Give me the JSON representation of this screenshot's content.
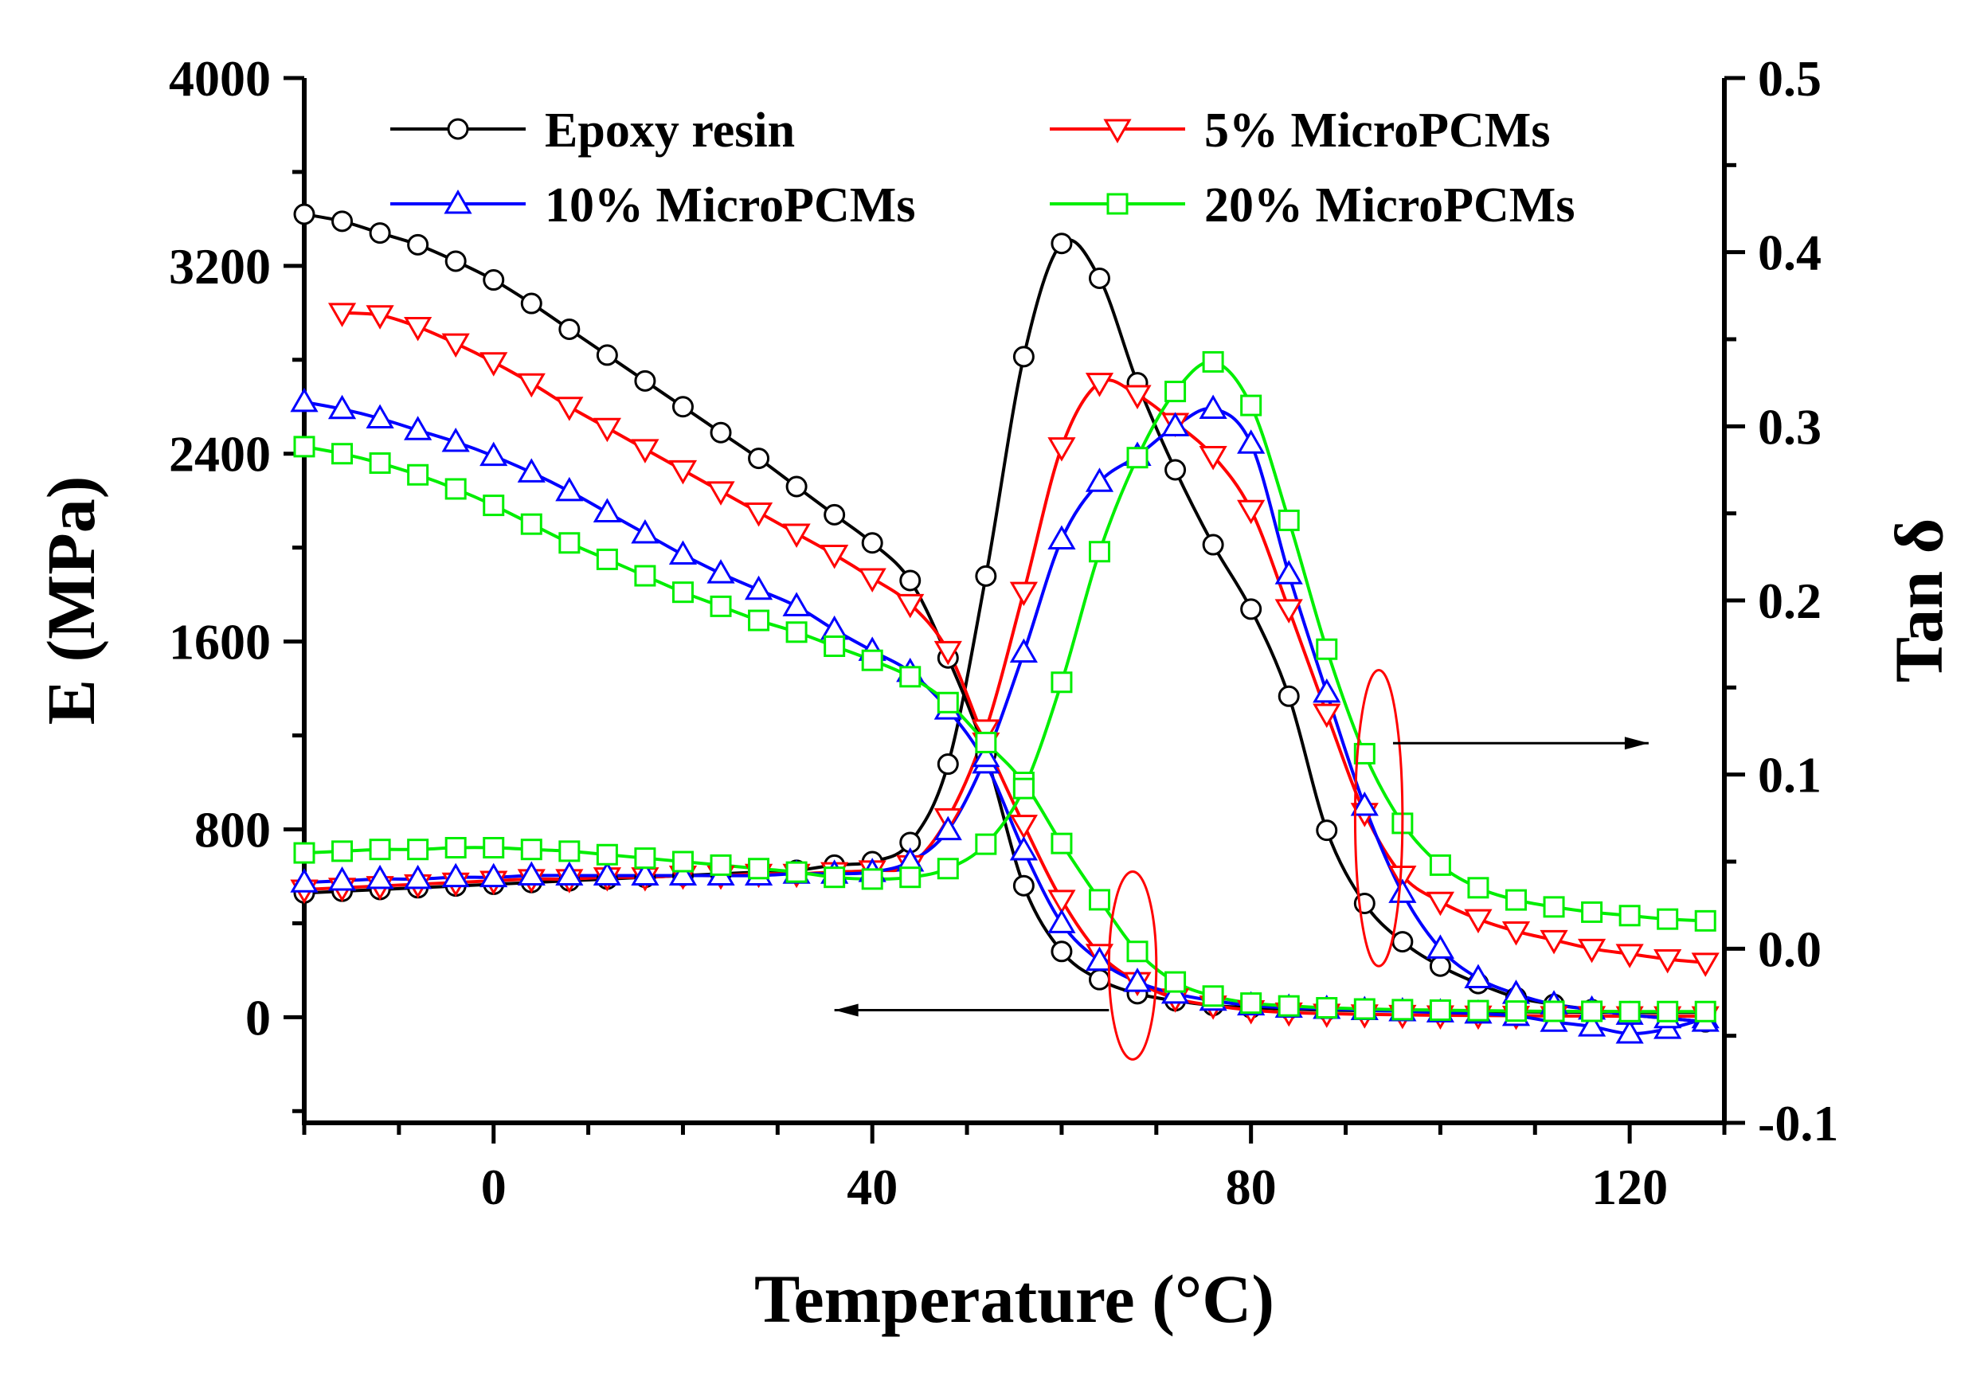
{
  "chart_data": {
    "type": "line",
    "title": "",
    "xlabel": "Temperature (°C)",
    "ylabel_left": "E  (MPa)",
    "ylabel_right": "Tan δ",
    "xlim": [
      -20,
      130
    ],
    "ylim_left": [
      -450,
      4000
    ],
    "ylim_right": [
      -0.1,
      0.5
    ],
    "x_ticks": [
      0,
      40,
      80,
      120
    ],
    "x_tick_labels": [
      "0",
      "40",
      "80",
      "120"
    ],
    "y_left_ticks": [
      0,
      800,
      1600,
      2400,
      3200,
      4000
    ],
    "y_left_tick_labels": [
      "0",
      "800",
      "1600",
      "2400",
      "3200",
      "4000"
    ],
    "y_right_ticks": [
      -0.1,
      0.0,
      0.1,
      0.2,
      0.3,
      0.4,
      0.5
    ],
    "y_right_tick_labels": [
      "-0.1",
      "0.0",
      "0.1",
      "0.2",
      "0.3",
      "0.4",
      "0.5"
    ],
    "grid": false,
    "legend_position": "top",
    "series": [
      {
        "name": "Epoxy resin",
        "color": "#000000",
        "marker": "circle",
        "storage_modulus": {
          "axis": "left",
          "x": [
            -20,
            -16,
            -12,
            -8,
            -4,
            0,
            4,
            8,
            12,
            16,
            20,
            24,
            28,
            32,
            36,
            40,
            44,
            48,
            52,
            56,
            60,
            64,
            68,
            72,
            76,
            80,
            84,
            88,
            92,
            96,
            100,
            104,
            108,
            112,
            116,
            120,
            124,
            128
          ],
          "y": [
            3420,
            3390,
            3340,
            3290,
            3220,
            3140,
            3040,
            2930,
            2820,
            2710,
            2600,
            2490,
            2380,
            2260,
            2140,
            2020,
            1860,
            1530,
            1120,
            560,
            280,
            160,
            100,
            70,
            50,
            40,
            35,
            30,
            28,
            26,
            25,
            24,
            23,
            22,
            21,
            20,
            20,
            20
          ]
        },
        "tan_delta": {
          "axis": "right",
          "x": [
            -20,
            -16,
            -12,
            -8,
            -4,
            0,
            4,
            8,
            12,
            16,
            20,
            24,
            28,
            32,
            36,
            40,
            44,
            48,
            52,
            56,
            60,
            64,
            68,
            72,
            76,
            80,
            84,
            88,
            92,
            96,
            100,
            104,
            108,
            112,
            116,
            120,
            124,
            128
          ],
          "y": [
            0.032,
            0.033,
            0.034,
            0.035,
            0.036,
            0.037,
            0.038,
            0.039,
            0.04,
            0.041,
            0.042,
            0.043,
            0.044,
            0.045,
            0.048,
            0.05,
            0.061,
            0.106,
            0.214,
            0.34,
            0.405,
            0.385,
            0.325,
            0.275,
            0.232,
            0.195,
            0.145,
            0.068,
            0.026,
            0.004,
            -0.01,
            -0.02,
            -0.028,
            -0.032,
            -0.035,
            -0.038,
            -0.04,
            -0.042
          ]
        }
      },
      {
        "name": "5% MicroPCMs",
        "color": "#ff0000",
        "marker": "triangle-down",
        "storage_modulus": {
          "axis": "left",
          "x": [
            -16,
            -12,
            -8,
            -4,
            0,
            4,
            8,
            12,
            16,
            20,
            24,
            28,
            32,
            36,
            40,
            44,
            48,
            52,
            56,
            60,
            64,
            68,
            72,
            76,
            80,
            84,
            88,
            92,
            96,
            100,
            104,
            108,
            112,
            116,
            120,
            124,
            128
          ],
          "y": [
            3000,
            2990,
            2940,
            2870,
            2790,
            2700,
            2600,
            2510,
            2420,
            2330,
            2240,
            2150,
            2060,
            1970,
            1870,
            1760,
            1560,
            1170,
            820,
            500,
            270,
            150,
            80,
            50,
            30,
            20,
            15,
            12,
            10,
            8,
            7,
            6,
            5,
            5,
            4,
            4,
            4
          ]
        },
        "tan_delta": {
          "axis": "right",
          "x": [
            -20,
            -16,
            -12,
            -8,
            -4,
            0,
            4,
            8,
            12,
            16,
            20,
            24,
            28,
            32,
            36,
            40,
            44,
            48,
            52,
            56,
            60,
            64,
            68,
            72,
            76,
            80,
            84,
            88,
            92,
            96,
            100,
            104,
            108,
            112,
            116,
            120,
            124,
            128
          ],
          "y": [
            0.034,
            0.035,
            0.036,
            0.037,
            0.038,
            0.039,
            0.04,
            0.04,
            0.041,
            0.041,
            0.042,
            0.042,
            0.043,
            0.043,
            0.044,
            0.045,
            0.048,
            0.075,
            0.126,
            0.205,
            0.288,
            0.325,
            0.318,
            0.302,
            0.283,
            0.252,
            0.195,
            0.135,
            0.078,
            0.042,
            0.027,
            0.017,
            0.01,
            0.005,
            0.0,
            -0.003,
            -0.006,
            -0.008
          ]
        }
      },
      {
        "name": "10% MicroPCMs",
        "color": "#0000ff",
        "marker": "triangle-up",
        "storage_modulus": {
          "axis": "left",
          "x": [
            -20,
            -16,
            -12,
            -8,
            -4,
            0,
            4,
            8,
            12,
            16,
            20,
            24,
            28,
            32,
            36,
            40,
            44,
            48,
            52,
            56,
            60,
            64,
            68,
            72,
            76,
            80,
            84,
            88,
            92,
            96,
            100,
            104,
            108,
            112,
            116,
            120,
            124,
            128
          ],
          "y": [
            2620,
            2590,
            2550,
            2500,
            2450,
            2390,
            2320,
            2240,
            2150,
            2060,
            1970,
            1890,
            1820,
            1750,
            1650,
            1560,
            1470,
            1310,
            1080,
            710,
            400,
            240,
            150,
            100,
            70,
            50,
            40,
            35,
            30,
            25,
            20,
            15,
            5,
            -20,
            -40,
            -70,
            -50,
            -5
          ]
        },
        "tan_delta": {
          "axis": "right",
          "x": [
            -20,
            -16,
            -12,
            -8,
            -4,
            0,
            4,
            8,
            12,
            16,
            20,
            24,
            28,
            32,
            36,
            40,
            44,
            48,
            52,
            56,
            60,
            64,
            68,
            72,
            76,
            80,
            84,
            88,
            92,
            96,
            100,
            104,
            108,
            112,
            116,
            120,
            124,
            128
          ],
          "y": [
            0.038,
            0.039,
            0.04,
            0.04,
            0.041,
            0.041,
            0.042,
            0.042,
            0.042,
            0.042,
            0.042,
            0.042,
            0.042,
            0.043,
            0.043,
            0.044,
            0.05,
            0.068,
            0.11,
            0.17,
            0.235,
            0.268,
            0.283,
            0.3,
            0.31,
            0.29,
            0.215,
            0.147,
            0.082,
            0.032,
            0.0,
            -0.017,
            -0.026,
            -0.032,
            -0.035,
            -0.038,
            -0.04,
            -0.042
          ]
        }
      },
      {
        "name": "20% MicroPCMs",
        "color": "#00ee00",
        "marker": "square",
        "storage_modulus": {
          "axis": "left",
          "x": [
            -20,
            -16,
            -12,
            -8,
            -4,
            0,
            4,
            8,
            12,
            16,
            20,
            24,
            28,
            32,
            36,
            40,
            44,
            48,
            52,
            56,
            60,
            64,
            68,
            72,
            76,
            80,
            84,
            88,
            92,
            96,
            100,
            104,
            108,
            112,
            116,
            120,
            124,
            128
          ],
          "y": [
            2430,
            2400,
            2360,
            2310,
            2250,
            2180,
            2100,
            2020,
            1950,
            1880,
            1810,
            1750,
            1690,
            1640,
            1580,
            1520,
            1450,
            1340,
            1170,
            1000,
            740,
            500,
            280,
            150,
            90,
            60,
            48,
            40,
            35,
            32,
            30,
            28,
            26,
            25,
            25,
            24,
            24,
            24
          ]
        },
        "tan_delta": {
          "axis": "right",
          "x": [
            -20,
            -16,
            -12,
            -8,
            -4,
            0,
            4,
            8,
            12,
            16,
            20,
            24,
            28,
            32,
            36,
            40,
            44,
            48,
            52,
            56,
            60,
            64,
            68,
            72,
            76,
            80,
            84,
            88,
            92,
            96,
            100,
            104,
            108,
            112,
            116,
            120,
            124,
            128
          ],
          "y": [
            0.055,
            0.056,
            0.057,
            0.057,
            0.058,
            0.058,
            0.057,
            0.056,
            0.054,
            0.052,
            0.05,
            0.048,
            0.046,
            0.044,
            0.041,
            0.04,
            0.041,
            0.046,
            0.06,
            0.092,
            0.153,
            0.228,
            0.282,
            0.32,
            0.337,
            0.312,
            0.246,
            0.172,
            0.112,
            0.072,
            0.048,
            0.035,
            0.028,
            0.024,
            0.021,
            0.019,
            0.017,
            0.016
          ]
        }
      }
    ],
    "annotations": [
      {
        "type": "ellipse",
        "color": "#ff0000",
        "x": 67.5,
        "y_left": 220,
        "rx_data": 2.5,
        "ry_left": 400,
        "axis": "left"
      },
      {
        "type": "ellipse",
        "color": "#ff0000",
        "x": 93.5,
        "y_right": 0.075,
        "rx_data": 2.5,
        "ry_right": 0.085,
        "axis": "right"
      },
      {
        "type": "arrow",
        "from_x": 65,
        "to_x": 36,
        "y_left": 30,
        "axis": "left",
        "label": ""
      },
      {
        "type": "arrow",
        "from_x": 95,
        "to_x": 122,
        "y_right": 0.118,
        "axis": "right",
        "label": ""
      }
    ]
  }
}
